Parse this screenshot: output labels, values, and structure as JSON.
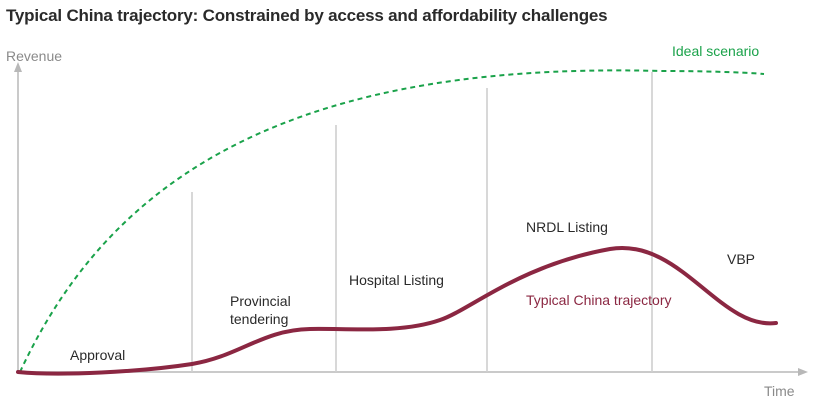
{
  "chart_data": {
    "type": "line",
    "title": "Typical China trajectory: Constrained by access and affordability challenges",
    "ylabel": "Revenue",
    "xlabel": "Time",
    "stages": [
      {
        "label": "Approval"
      },
      {
        "label": "Provincial\ntendering"
      },
      {
        "label": "Hospital Listing"
      },
      {
        "label": "NRDL Listing"
      },
      {
        "label": "VBP"
      }
    ],
    "series": [
      {
        "name": "Ideal scenario",
        "style": "dashed",
        "color": "#1aa24a",
        "x": [
          0,
          0.2,
          0.4,
          0.6,
          0.8,
          1.0
        ],
        "y": [
          0.0,
          0.6,
          0.84,
          0.95,
          1.0,
          0.99
        ]
      },
      {
        "name": "Typical China trajectory",
        "style": "solid",
        "color": "#8b2742",
        "x": [
          0,
          0.16,
          0.23,
          0.31,
          0.42,
          0.52,
          0.64,
          0.72,
          0.84,
          0.97
        ],
        "y": [
          0.0,
          0.0,
          0.04,
          0.15,
          0.15,
          0.18,
          0.32,
          0.42,
          0.38,
          0.17
        ]
      }
    ],
    "grid": false
  }
}
